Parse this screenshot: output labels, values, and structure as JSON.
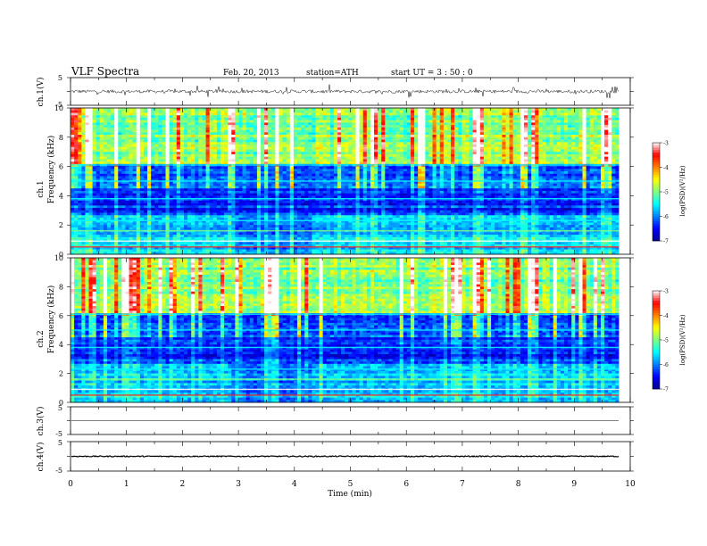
{
  "header": {
    "title": "VLF  Spectra",
    "date": "Feb. 20, 2013",
    "station": "station=ATH",
    "start": "start  UT  =   3  : 50 : 0"
  },
  "colors": {
    "colormap": [
      "#00008b",
      "#0000ff",
      "#0080ff",
      "#00ffff",
      "#80ff80",
      "#ffff00",
      "#ff8000",
      "#ff0000",
      "#ffffff"
    ]
  },
  "chart_data": {
    "type": "heatmap",
    "xlabel": "Time  (min)",
    "xlim": [
      0,
      10
    ],
    "x_ticks": [
      "0",
      "1",
      "2",
      "3",
      "4",
      "5",
      "6",
      "7",
      "8",
      "9",
      "10"
    ],
    "data_end_min": 9.8,
    "panels": [
      {
        "id": "ch1v",
        "kind": "waveform",
        "ylabel": "ch.1(V)",
        "ylim": [
          -5,
          5
        ],
        "y_ticks": [
          "5",
          "-5"
        ],
        "baseline": 0,
        "noise_amplitude": 1
      },
      {
        "id": "ch1s",
        "kind": "spectrogram",
        "ylabel_top": "ch.1",
        "ylabel": "Frequency  (kHz)",
        "ylim": [
          0,
          10
        ],
        "y_ticks": [
          "0",
          "2",
          "4",
          "6",
          "8",
          "10"
        ],
        "colorbar": {
          "label": "log(PSD)(V²/Hz)",
          "ticks": [
            "-3",
            "-4",
            "-5",
            "-6",
            "-7"
          ],
          "range": [
            -7,
            -3
          ]
        }
      },
      {
        "id": "ch2s",
        "kind": "spectrogram",
        "ylabel_top": "ch.2",
        "ylabel": "Frequency  (kHz)",
        "ylim": [
          0,
          10
        ],
        "y_ticks": [
          "0",
          "2",
          "4",
          "6",
          "8",
          "10"
        ],
        "colorbar": {
          "label": "log(PSD)(V²/Hz)",
          "ticks": [
            "-3",
            "-4",
            "-5",
            "-6",
            "-7"
          ],
          "range": [
            -7,
            -3
          ]
        }
      },
      {
        "id": "ch3v",
        "kind": "waveform",
        "ylabel": "ch.3(V)",
        "ylim": [
          -5,
          5
        ],
        "y_ticks": [
          "5",
          "-5"
        ],
        "baseline": 0,
        "noise_amplitude": 0.05
      },
      {
        "id": "ch4v",
        "kind": "waveform",
        "ylabel": "ch.4(V)",
        "ylim": [
          -5,
          5
        ],
        "y_ticks": [
          "5",
          "-5"
        ],
        "baseline": 0,
        "noise_amplitude": 0.3
      }
    ]
  }
}
